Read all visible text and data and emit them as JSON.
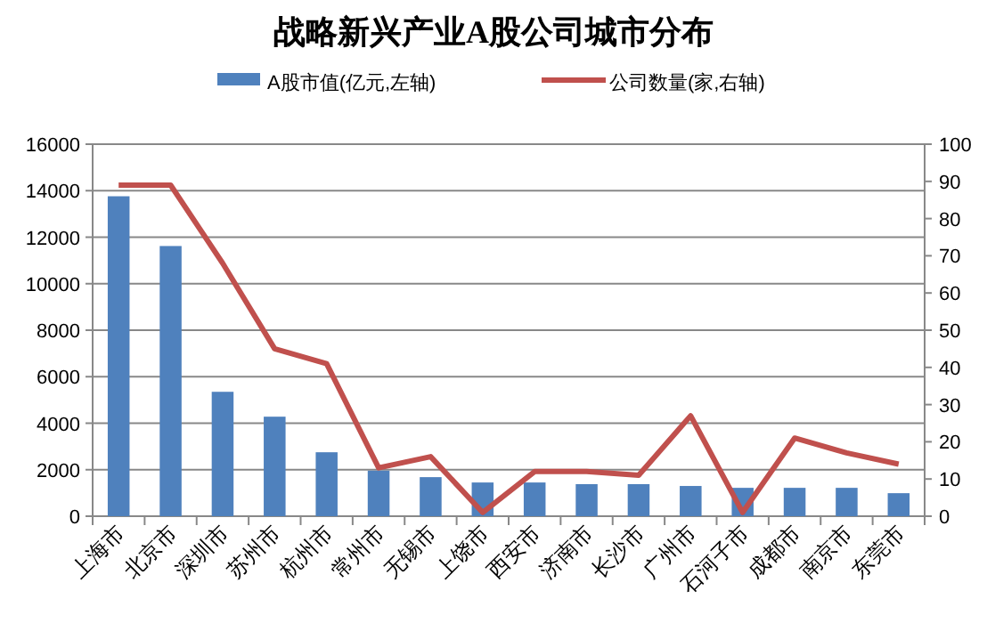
{
  "chart_data": {
    "type": "bar",
    "title": "战略新兴产业A股公司城市分布",
    "categories": [
      "上海市",
      "北京市",
      "深圳市",
      "苏州市",
      "杭州市",
      "常州市",
      "无锡市",
      "上饶市",
      "西安市",
      "济南市",
      "长沙市",
      "广州市",
      "石河子市",
      "成都市",
      "南京市",
      "东莞市"
    ],
    "series": [
      {
        "name": "A股市值(亿元,左轴)",
        "color": "#4f81bd",
        "values": [
          13760,
          11620,
          5350,
          4280,
          2750,
          1960,
          1680,
          1450,
          1450,
          1380,
          1380,
          1300,
          1220,
          1220,
          1220,
          990
        ]
      },
      {
        "name": "公司数量(家,右轴)",
        "type": "line",
        "axis": "y2",
        "color": "#c0504d",
        "values": [
          89,
          89,
          68,
          45,
          41,
          13,
          16,
          1,
          12,
          12,
          11,
          27,
          1,
          21,
          17,
          14
        ]
      }
    ],
    "ylim": [
      0,
      16000
    ],
    "yticks": [
      0,
      2000,
      4000,
      6000,
      8000,
      10000,
      12000,
      14000,
      16000
    ],
    "y2lim": [
      0,
      100
    ],
    "y2ticks": [
      0,
      10,
      20,
      30,
      40,
      50,
      60,
      70,
      80,
      90,
      100
    ],
    "grid": "y",
    "legend": "top"
  }
}
